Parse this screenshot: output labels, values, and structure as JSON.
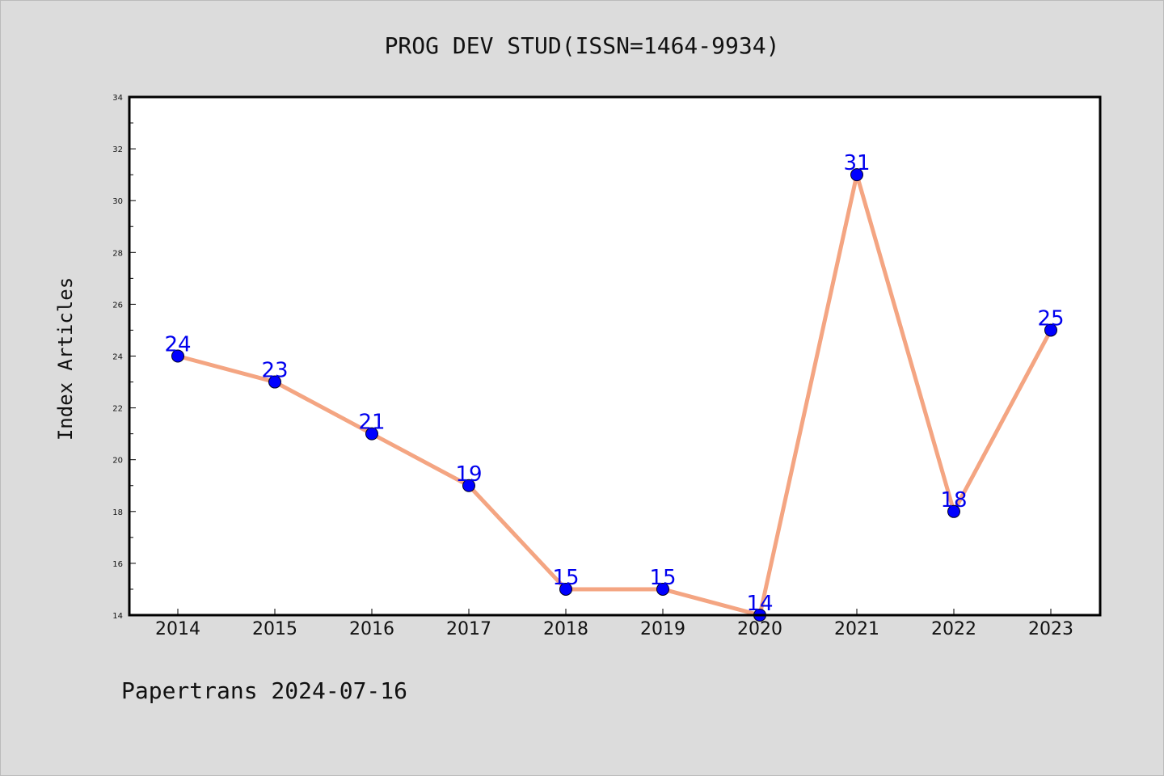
{
  "chart_data": {
    "type": "line",
    "title": "PROG DEV STUD(ISSN=1464-9934)",
    "ylabel": "Index Articles",
    "xlabel": "",
    "categories": [
      "2014",
      "2015",
      "2016",
      "2017",
      "2018",
      "2019",
      "2020",
      "2021",
      "2022",
      "2023"
    ],
    "series": [
      {
        "values": [
          24,
          23,
          21,
          19,
          15,
          15,
          14,
          31,
          18,
          25
        ]
      }
    ],
    "ylim": [
      14,
      34
    ],
    "yticks": [
      "14",
      "16",
      "18",
      "20",
      "22",
      "24",
      "26",
      "28",
      "30",
      "32",
      "34"
    ],
    "line_color": "#f4a582",
    "marker_color": "#0000ff",
    "label_color": "#0000ee",
    "grid": false,
    "legend": "none"
  },
  "footer": {
    "text": "Papertrans 2024-07-16"
  }
}
